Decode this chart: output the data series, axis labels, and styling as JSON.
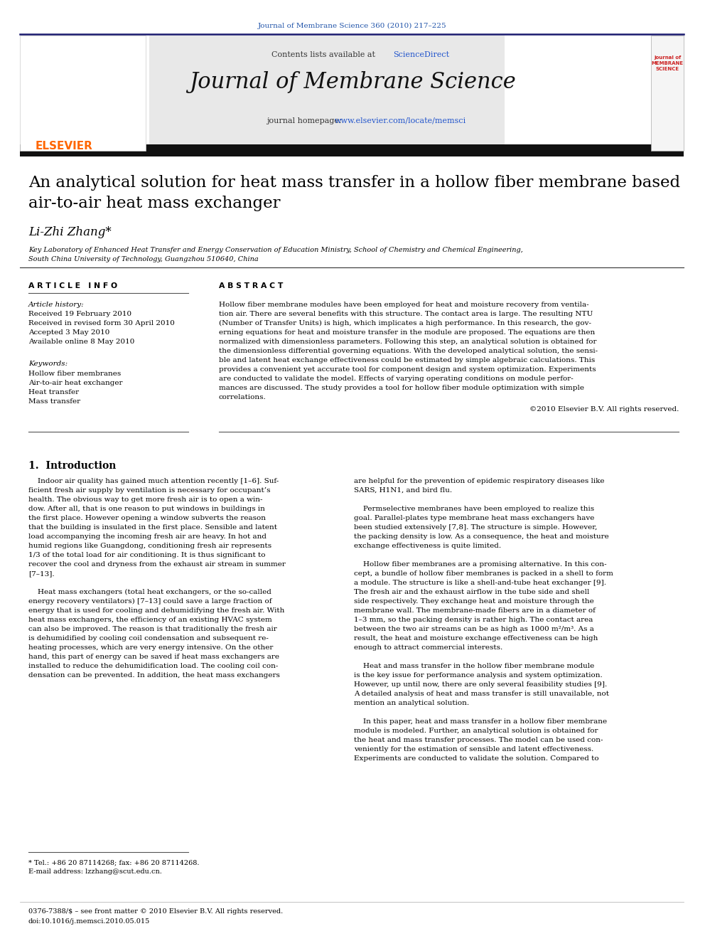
{
  "fig_width": 9.92,
  "fig_height": 13.23,
  "bg_color": "#ffffff",
  "top_journal_ref": "Journal of Membrane Science 360 (2010) 217–225",
  "top_journal_ref_color": "#2255aa",
  "header_bg_color": "#e8e8e8",
  "journal_name": "Journal of Membrane Science",
  "contents_text": "Contents lists available at ",
  "sciencedirect_text": "ScienceDirect",
  "sciencedirect_color": "#2255cc",
  "journal_homepage_text": "journal homepage: ",
  "journal_url": "www.elsevier.com/locate/memsci",
  "journal_url_color": "#2255cc",
  "divider_color": "#1a1a6e",
  "article_title": "An analytical solution for heat mass transfer in a hollow fiber membrane based\nair-to-air heat mass exchanger",
  "author": "Li-Zhi Zhang",
  "affiliation_line1": "Key Laboratory of Enhanced Heat Transfer and Energy Conservation of Education Ministry, School of Chemistry and Chemical Engineering,",
  "affiliation_line2": "South China University of Technology, Guangzhou 510640, China",
  "article_info_header": "A R T I C L E   I N F O",
  "abstract_header": "A B S T R A C T",
  "article_history_label": "Article history:",
  "received_date": "Received 19 February 2010",
  "revised_date": "Received in revised form 30 April 2010",
  "accepted_date": "Accepted 3 May 2010",
  "online_date": "Available online 8 May 2010",
  "keywords_label": "Keywords:",
  "keyword1": "Hollow fiber membranes",
  "keyword2": "Air-to-air heat exchanger",
  "keyword3": "Heat transfer",
  "keyword4": "Mass transfer",
  "copyright_text": "©2010 Elsevier B.V. All rights reserved.",
  "section1_header": "1.  Introduction",
  "footnote_star": "* Tel.: +86 20 87114268; fax: +86 20 87114268.",
  "footnote_email": "E-mail address: lzzhang@scut.edu.cn.",
  "footer_issn": "0376-7388/$ – see front matter © 2010 Elsevier B.V. All rights reserved.",
  "footer_doi": "doi:10.1016/j.memsci.2010.05.015",
  "elsevier_color": "#ff6600",
  "header_border_color": "#2a2a7a",
  "abstract_lines": [
    "Hollow fiber membrane modules have been employed for heat and moisture recovery from ventila-",
    "tion air. There are several benefits with this structure. The contact area is large. The resulting NTU",
    "(Number of Transfer Units) is high, which implicates a high performance. In this research, the gov-",
    "erning equations for heat and moisture transfer in the module are proposed. The equations are then",
    "normalized with dimensionless parameters. Following this step, an analytical solution is obtained for",
    "the dimensionless differential governing equations. With the developed analytical solution, the sensi-",
    "ble and latent heat exchange effectiveness could be estimated by simple algebraic calculations. This",
    "provides a convenient yet accurate tool for component design and system optimization. Experiments",
    "are conducted to validate the model. Effects of varying operating conditions on module perfor-",
    "mances are discussed. The study provides a tool for hollow fiber module optimization with simple",
    "correlations."
  ],
  "col1_lines": [
    "    Indoor air quality has gained much attention recently [1–6]. Suf-",
    "ficient fresh air supply by ventilation is necessary for occupant’s",
    "health. The obvious way to get more fresh air is to open a win-",
    "dow. After all, that is one reason to put windows in buildings in",
    "the first place. However opening a window subverts the reason",
    "that the building is insulated in the first place. Sensible and latent",
    "load accompanying the incoming fresh air are heavy. In hot and",
    "humid regions like Guangdong, conditioning fresh air represents",
    "1/3 of the total load for air conditioning. It is thus significant to",
    "recover the cool and dryness from the exhaust air stream in summer",
    "[7–13].",
    "",
    "    Heat mass exchangers (total heat exchangers, or the so-called",
    "energy recovery ventilators) [7–13] could save a large fraction of",
    "energy that is used for cooling and dehumidifying the fresh air. With",
    "heat mass exchangers, the efficiency of an existing HVAC system",
    "can also be improved. The reason is that traditionally the fresh air",
    "is dehumidified by cooling coil condensation and subsequent re-",
    "heating processes, which are very energy intensive. On the other",
    "hand, this part of energy can be saved if heat mass exchangers are",
    "installed to reduce the dehumidification load. The cooling coil con-",
    "densation can be prevented. In addition, the heat mass exchangers"
  ],
  "col2_lines": [
    "are helpful for the prevention of epidemic respiratory diseases like",
    "SARS, H1N1, and bird flu.",
    "",
    "    Permselective membranes have been employed to realize this",
    "goal. Parallel-plates type membrane heat mass exchangers have",
    "been studied extensively [7,8]. The structure is simple. However,",
    "the packing density is low. As a consequence, the heat and moisture",
    "exchange effectiveness is quite limited.",
    "",
    "    Hollow fiber membranes are a promising alternative. In this con-",
    "cept, a bundle of hollow fiber membranes is packed in a shell to form",
    "a module. The structure is like a shell-and-tube heat exchanger [9].",
    "The fresh air and the exhaust airflow in the tube side and shell",
    "side respectively. They exchange heat and moisture through the",
    "membrane wall. The membrane-made fibers are in a diameter of",
    "1–3 mm, so the packing density is rather high. The contact area",
    "between the two air streams can be as high as 1000 m²/m³. As a",
    "result, the heat and moisture exchange effectiveness can be high",
    "enough to attract commercial interests.",
    "",
    "    Heat and mass transfer in the hollow fiber membrane module",
    "is the key issue for performance analysis and system optimization.",
    "However, up until now, there are only several feasibility studies [9].",
    "A detailed analysis of heat and mass transfer is still unavailable, not",
    "mention an analytical solution.",
    "",
    "    In this paper, heat and mass transfer in a hollow fiber membrane",
    "module is modeled. Further, an analytical solution is obtained for",
    "the heat and mass transfer processes. The model can be used con-",
    "veniently for the estimation of sensible and latent effectiveness.",
    "Experiments are conducted to validate the solution. Compared to"
  ]
}
